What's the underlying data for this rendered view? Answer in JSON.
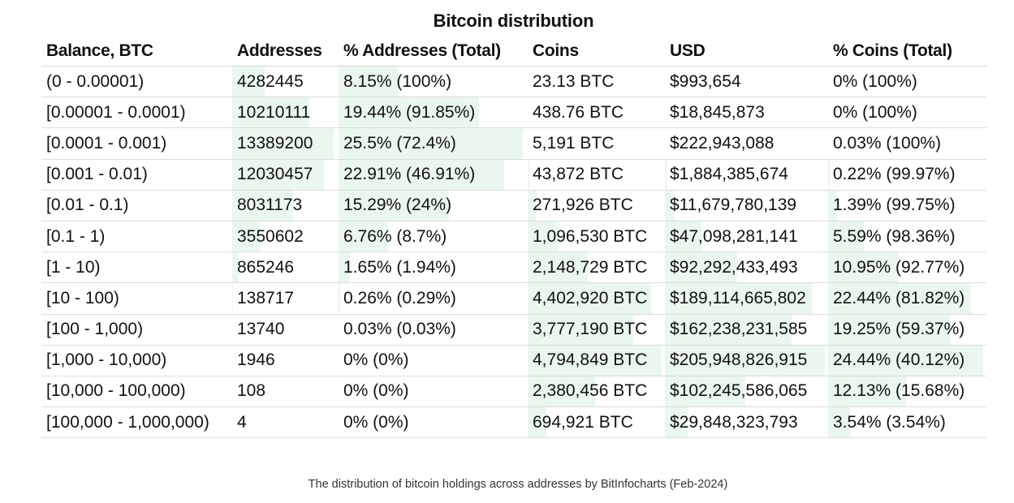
{
  "title": "Bitcoin distribution",
  "columns": [
    "Balance, BTC",
    "Addresses",
    "% Addresses (Total)",
    "Coins",
    "USD",
    "% Coins (Total)"
  ],
  "rows": [
    {
      "balance": "(0 - 0.00001)",
      "addresses": "4282445",
      "pct_addresses": "8.15% (100%)",
      "coins": "23.13 BTC",
      "usd": "$993,654",
      "pct_coins": "0% (100%)",
      "fill": {
        "addresses": 0.32,
        "pct_addresses": 0.32,
        "coins": 0.0,
        "usd": 0.0,
        "pct_coins": 0.0
      }
    },
    {
      "balance": "[0.00001 - 0.0001)",
      "addresses": "10210111",
      "pct_addresses": "19.44% (91.85%)",
      "coins": "438.76 BTC",
      "usd": "$18,845,873",
      "pct_coins": "0% (100%)",
      "fill": {
        "addresses": 0.76,
        "pct_addresses": 0.76,
        "coins": 0.0,
        "usd": 0.0,
        "pct_coins": 0.0
      }
    },
    {
      "balance": "[0.0001 - 0.001)",
      "addresses": "13389200",
      "pct_addresses": "25.5% (72.4%)",
      "coins": "5,191 BTC",
      "usd": "$222,943,088",
      "pct_coins": "0.03% (100%)",
      "fill": {
        "addresses": 1.0,
        "pct_addresses": 1.0,
        "coins": 0.0,
        "usd": 0.0,
        "pct_coins": 0.0
      }
    },
    {
      "balance": "[0.001 - 0.01)",
      "addresses": "12030457",
      "pct_addresses": "22.91% (46.91%)",
      "coins": "43,872 BTC",
      "usd": "$1,884,385,674",
      "pct_coins": "0.22% (99.97%)",
      "fill": {
        "addresses": 0.9,
        "pct_addresses": 0.9,
        "coins": 0.01,
        "usd": 0.01,
        "pct_coins": 0.01
      }
    },
    {
      "balance": "[0.01 - 0.1)",
      "addresses": "8031173",
      "pct_addresses": "15.29% (24%)",
      "coins": "271,926 BTC",
      "usd": "$11,679,780,139",
      "pct_coins": "1.39% (99.75%)",
      "fill": {
        "addresses": 0.6,
        "pct_addresses": 0.6,
        "coins": 0.06,
        "usd": 0.06,
        "pct_coins": 0.06
      }
    },
    {
      "balance": "[0.1 - 1)",
      "addresses": "3550602",
      "pct_addresses": "6.76% (8.7%)",
      "coins": "1,096,530 BTC",
      "usd": "$47,098,281,141",
      "pct_coins": "5.59% (98.36%)",
      "fill": {
        "addresses": 0.27,
        "pct_addresses": 0.27,
        "coins": 0.23,
        "usd": 0.23,
        "pct_coins": 0.23
      }
    },
    {
      "balance": "[1 - 10)",
      "addresses": "865246",
      "pct_addresses": "1.65% (1.94%)",
      "coins": "2,148,729 BTC",
      "usd": "$92,292,433,493",
      "pct_coins": "10.95% (92.77%)",
      "fill": {
        "addresses": 0.06,
        "pct_addresses": 0.06,
        "coins": 0.45,
        "usd": 0.45,
        "pct_coins": 0.45
      }
    },
    {
      "balance": "[10 - 100)",
      "addresses": "138717",
      "pct_addresses": "0.26% (0.29%)",
      "coins": "4,402,920 BTC",
      "usd": "$189,114,665,802",
      "pct_coins": "22.44% (81.82%)",
      "fill": {
        "addresses": 0.01,
        "pct_addresses": 0.01,
        "coins": 0.92,
        "usd": 0.92,
        "pct_coins": 0.92
      }
    },
    {
      "balance": "[100 - 1,000)",
      "addresses": "13740",
      "pct_addresses": "0.03% (0.03%)",
      "coins": "3,777,190 BTC",
      "usd": "$162,238,231,585",
      "pct_coins": "19.25% (59.37%)",
      "fill": {
        "addresses": 0.0,
        "pct_addresses": 0.0,
        "coins": 0.79,
        "usd": 0.79,
        "pct_coins": 0.79
      }
    },
    {
      "balance": "[1,000 - 10,000)",
      "addresses": "1946",
      "pct_addresses": "0% (0%)",
      "coins": "4,794,849 BTC",
      "usd": "$205,948,826,915",
      "pct_coins": "24.44% (40.12%)",
      "fill": {
        "addresses": 0.0,
        "pct_addresses": 0.0,
        "coins": 1.0,
        "usd": 1.0,
        "pct_coins": 1.0
      }
    },
    {
      "balance": "[10,000 - 100,000)",
      "addresses": "108",
      "pct_addresses": "0% (0%)",
      "coins": "2,380,456 BTC",
      "usd": "$102,245,586,065",
      "pct_coins": "12.13% (15.68%)",
      "fill": {
        "addresses": 0.0,
        "pct_addresses": 0.0,
        "coins": 0.5,
        "usd": 0.5,
        "pct_coins": 0.5
      }
    },
    {
      "balance": "[100,000 - 1,000,000)",
      "addresses": "4",
      "pct_addresses": "0% (0%)",
      "coins": "694,921 BTC",
      "usd": "$29,848,323,793",
      "pct_coins": "3.54% (3.54%)",
      "fill": {
        "addresses": 0.0,
        "pct_addresses": 0.0,
        "coins": 0.14,
        "usd": 0.14,
        "pct_coins": 0.14
      }
    }
  ],
  "caption": "The distribution of bitcoin holdings across addresses by BitInfocharts (Feb-2024)",
  "colors": {
    "bar_fill": "#eaf7ee",
    "row_border": "#dcdcdc",
    "text": "#111111"
  }
}
